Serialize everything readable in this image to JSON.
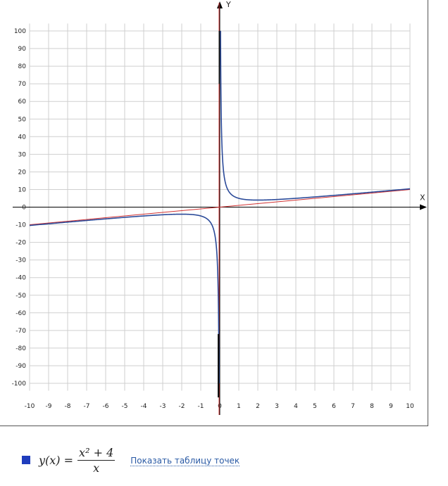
{
  "chart_data": {
    "type": "line",
    "function": "y = (x^2 + 4)/x",
    "xlim": [
      -10,
      10
    ],
    "ylim": [
      -105,
      105
    ],
    "x_ticks": [
      -10,
      -9,
      -8,
      -7,
      -6,
      -5,
      -4,
      -3,
      -2,
      -1,
      0,
      1,
      2,
      3,
      4,
      5,
      6,
      7,
      8,
      9,
      10
    ],
    "y_ticks": [
      100,
      90,
      80,
      70,
      60,
      50,
      40,
      30,
      20,
      10,
      0,
      -10,
      -20,
      -30,
      -40,
      -50,
      -60,
      -70,
      -80,
      -90,
      -100
    ],
    "xlabel": "X",
    "ylabel": "Y",
    "grid": true,
    "series": [
      {
        "color": "#2b4a99",
        "branches": [
          {
            "x": [
              -10,
              -8,
              -6,
              -4,
              -3,
              -2,
              -1.5,
              -1,
              -0.5,
              -0.3,
              -0.2,
              -0.1,
              -0.05,
              -0.04
            ],
            "y": [
              -10.4,
              -8.5,
              -6.67,
              -5,
              -4.33,
              -4,
              -4.17,
              -5,
              -8.5,
              -13.63,
              -20.2,
              -40.1,
              -80.05,
              -100.04
            ]
          },
          {
            "x": [
              0.04,
              0.05,
              0.1,
              0.2,
              0.3,
              0.5,
              1,
              1.5,
              2,
              3,
              4,
              6,
              8,
              10
            ],
            "y": [
              100.04,
              80.05,
              40.1,
              20.2,
              13.63,
              8.5,
              5,
              4.17,
              4,
              4.33,
              5,
              6.67,
              8.5,
              10.4
            ]
          }
        ]
      },
      {
        "color": "#d03030",
        "asymptote": "y = x",
        "x": [
          -10,
          10
        ],
        "y": [
          -10,
          10
        ]
      },
      {
        "color": "#d03030",
        "asymptote": "x = 0",
        "x": [
          0,
          0
        ],
        "y": [
          -105,
          105
        ]
      }
    ]
  },
  "legend": {
    "color": "#1f3dbd",
    "formula": {
      "lhs": "y(x) =",
      "numerator": "x² + 4",
      "denominator": "x"
    },
    "link_label": "Показать таблицу точек"
  }
}
